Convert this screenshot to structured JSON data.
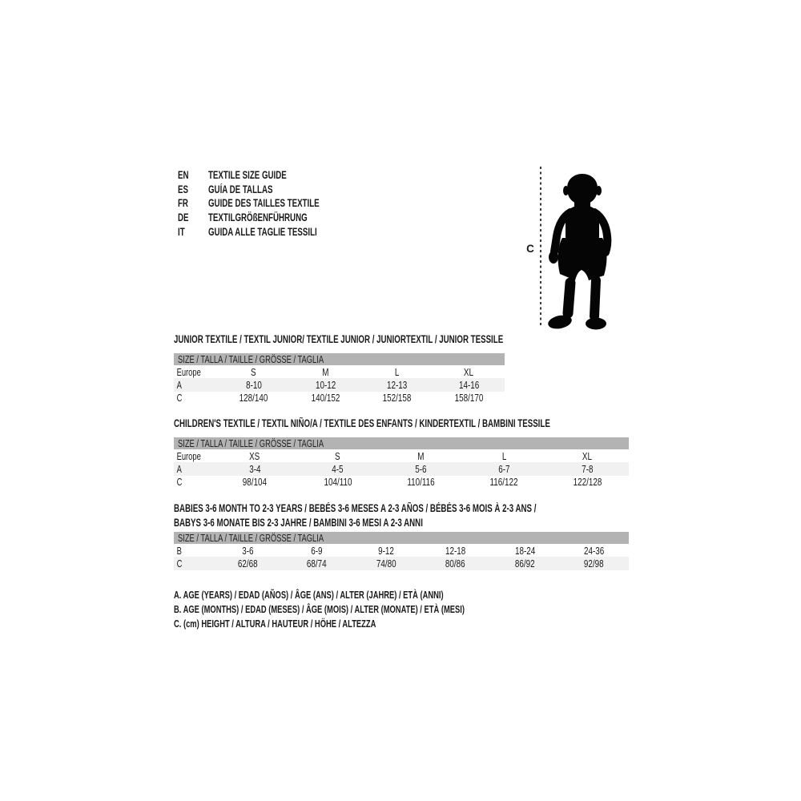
{
  "page": {
    "background": "#ffffff"
  },
  "languages": [
    {
      "code": "EN",
      "title": "TEXTILE SIZE GUIDE"
    },
    {
      "code": "ES",
      "title": "GUÍA DE TALLAS"
    },
    {
      "code": "FR",
      "title": "GUIDE DES TAILLES TEXTILE"
    },
    {
      "code": "DE",
      "title": "TEXTILGRÖßENFÜHRUNG"
    },
    {
      "code": "IT",
      "title": "GUIDA ALLE TAGLIE TESSILI"
    }
  ],
  "figure": {
    "icon": "toddler-silhouette",
    "measure_label": "C"
  },
  "colors": {
    "size_bar_bg": "#b3b3b3",
    "row_shaded_bg": "#f1f1f1",
    "text": "#1a1a1a",
    "silhouette": "#050505"
  },
  "tables": [
    {
      "title_lines": [
        "JUNIOR TEXTILE / TEXTIL JUNIOR/ TEXTILE JUNIOR / JUNIORTEXTIL / JUNIOR TESSILE"
      ],
      "size_bar": "SIZE / TALLA / TAILLE / GRÖSSE / TAGLIA",
      "rows": [
        {
          "label": "Europe",
          "values": [
            "S",
            "M",
            "L",
            "XL"
          ],
          "shaded": false
        },
        {
          "label": "A",
          "values": [
            "8-10",
            "10-12",
            "12-13",
            "14-16"
          ],
          "shaded": true
        },
        {
          "label": "C",
          "values": [
            "128/140",
            "140/152",
            "152/158",
            "158/170"
          ],
          "shaded": false
        }
      ]
    },
    {
      "title_lines": [
        "CHILDREN'S TEXTILE / TEXTIL NIÑO/A / TEXTILE DES ENFANTS / KINDERTEXTIL / BAMBINI TESSILE"
      ],
      "size_bar": "SIZE / TALLA / TAILLE / GRÖSSE / TAGLIA",
      "rows": [
        {
          "label": "Europe",
          "values": [
            "XS",
            "S",
            "M",
            "L",
            "XL"
          ],
          "shaded": false
        },
        {
          "label": "A",
          "values": [
            "3-4",
            "4-5",
            "5-6",
            "6-7",
            "7-8"
          ],
          "shaded": true
        },
        {
          "label": "C",
          "values": [
            "98/104",
            "104/110",
            "110/116",
            "116/122",
            "122/128"
          ],
          "shaded": false
        }
      ]
    },
    {
      "title_lines": [
        "BABIES 3-6 MONTH TO 2-3 YEARS / BEBÉS 3-6 MESES A 2-3 AÑOS / BÉBÉS 3-6 MOIS À 2-3 ANS /",
        "BABYS 3-6 MONATE BIS 2-3 JAHRE / BAMBINI 3-6 MESI A 2-3 ANNI"
      ],
      "size_bar": "SIZE / TALLA / TAILLE / GRÖSSE / TAGLIA",
      "rows": [
        {
          "label": "B",
          "values": [
            "3-6",
            "6-9",
            "9-12",
            "12-18",
            "18-24",
            "24-36"
          ],
          "shaded": false
        },
        {
          "label": "C",
          "values": [
            "62/68",
            "68/74",
            "74/80",
            "80/86",
            "86/92",
            "92/98"
          ],
          "shaded": true
        }
      ]
    }
  ],
  "notes": [
    "A. AGE (YEARS) / EDAD (AÑOS) / ÂGE (ANS) / ALTER (JAHRE) / ETÀ (ANNI)",
    "B. AGE (MONTHS) / EDAD (MESES) / ÂGE (MOIS) / ALTER (MONATE) / ETÀ (MESI)",
    "C. (cm) HEIGHT / ALTURA / HAUTEUR / HÖHE / ALTEZZA"
  ]
}
